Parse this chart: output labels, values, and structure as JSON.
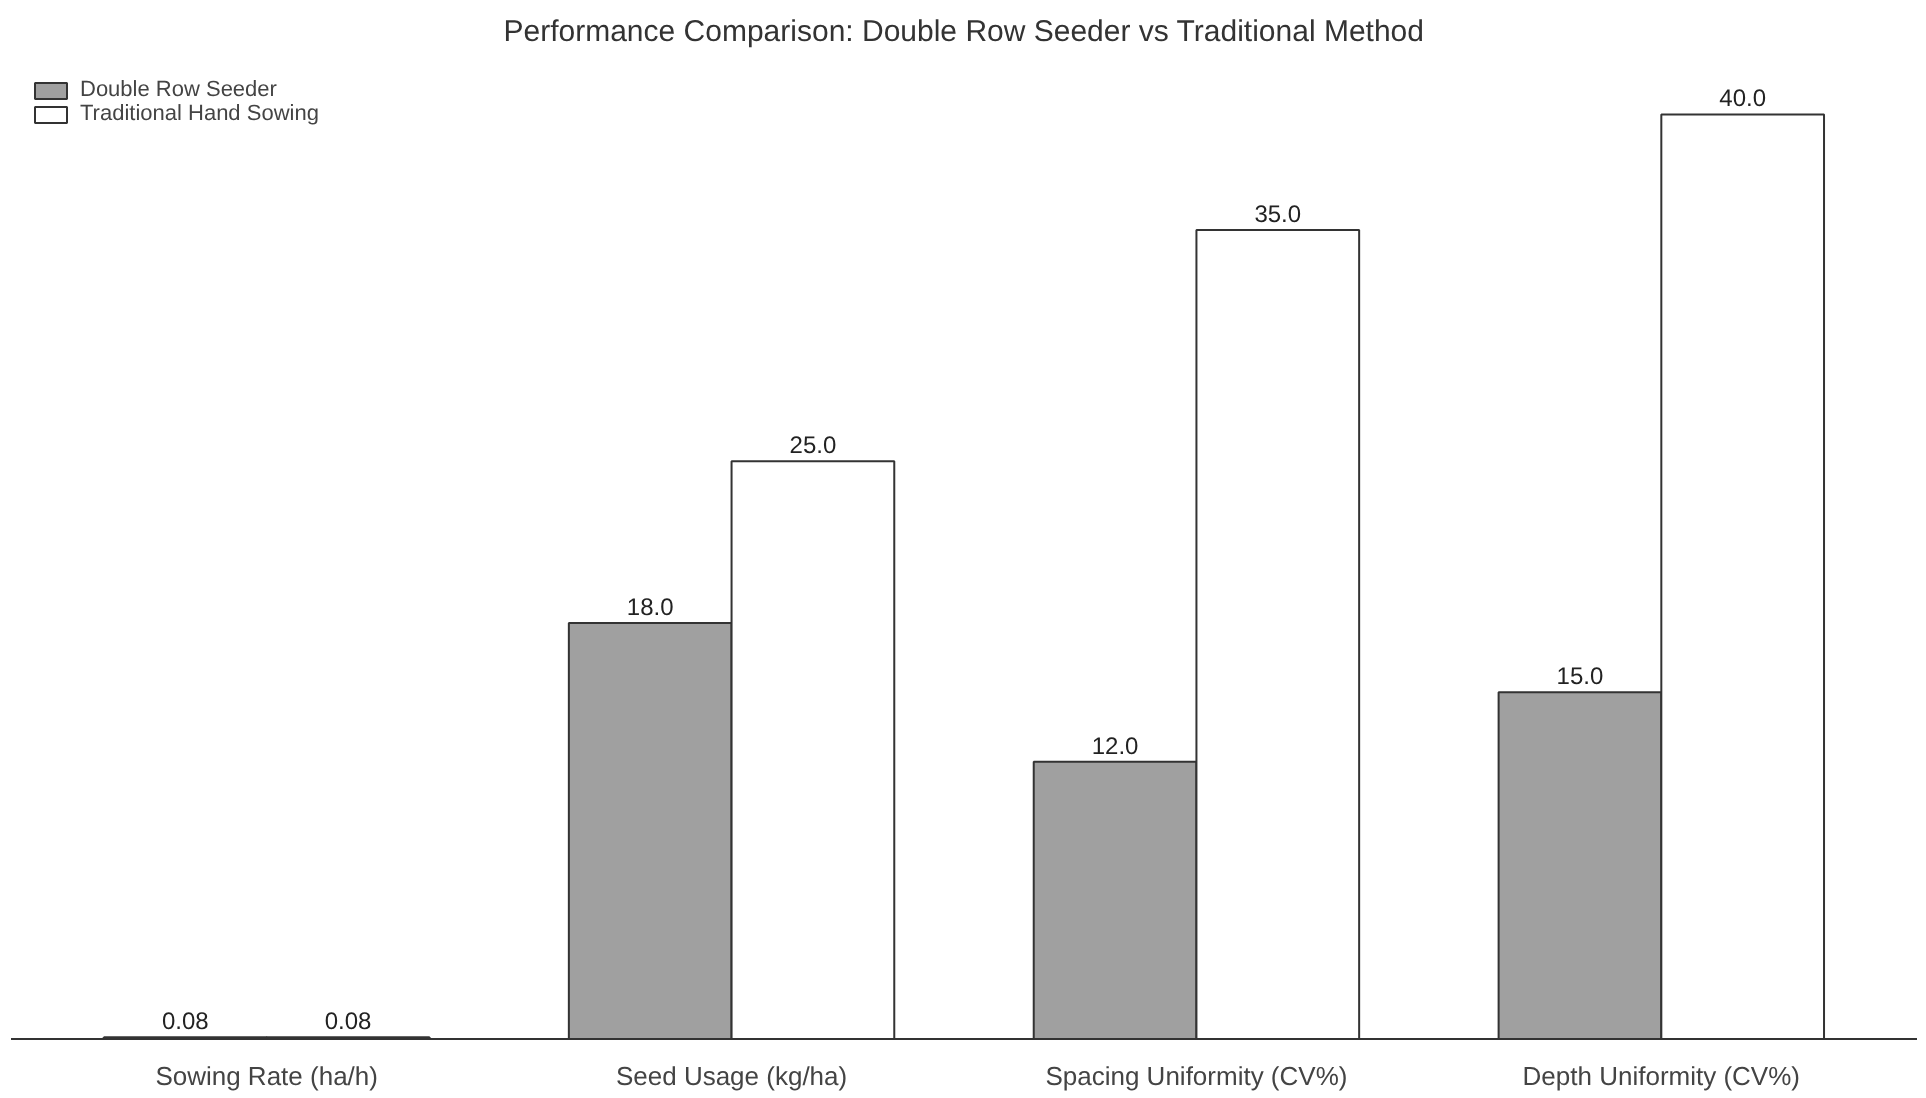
{
  "chart_data": {
    "type": "bar",
    "title": "Performance Comparison: Double Row Seeder vs Traditional Method",
    "categories": [
      "Sowing Rate (ha/h)",
      "Seed Usage (kg/ha)",
      "Spacing Uniformity (CV%)",
      "Depth Uniformity (CV%)"
    ],
    "series": [
      {
        "name": "Double Row Seeder",
        "color": "#a0a0a0",
        "values": [
          0.08,
          18,
          12,
          15
        ],
        "value_labels": [
          "0.08",
          "18.0",
          "12.0",
          "15.0"
        ]
      },
      {
        "name": "Traditional Hand Sowing",
        "color": "#ffffff",
        "values": [
          0.08,
          25,
          35,
          40
        ],
        "value_labels": [
          "0.08",
          "25.0",
          "35.0",
          "40.0"
        ]
      }
    ],
    "legend": "top left",
    "grid": false
  }
}
